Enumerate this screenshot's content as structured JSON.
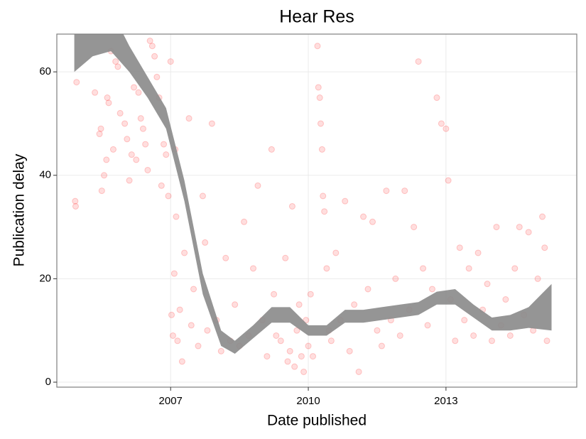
{
  "chart_data": {
    "type": "scatter",
    "title": "Hear Res",
    "x_label": "Date published",
    "y_label": "Publication delay",
    "x": [
      2004.92,
      2004.93,
      2004.95,
      2005.35,
      2005.45,
      2005.48,
      2005.5,
      2005.55,
      2005.6,
      2005.62,
      2005.65,
      2005.7,
      2005.75,
      2005.8,
      2005.85,
      2005.9,
      2006.0,
      2006.05,
      2006.1,
      2006.15,
      2006.2,
      2006.25,
      2006.3,
      2006.35,
      2006.4,
      2006.45,
      2006.5,
      2006.55,
      2006.6,
      2006.65,
      2006.7,
      2006.75,
      2006.8,
      2006.85,
      2006.9,
      2006.95,
      2007.0,
      2007.02,
      2007.05,
      2007.08,
      2007.1,
      2007.12,
      2007.15,
      2007.2,
      2007.25,
      2007.3,
      2007.4,
      2007.45,
      2007.5,
      2007.6,
      2007.7,
      2007.75,
      2007.8,
      2007.9,
      2008.0,
      2008.1,
      2008.2,
      2008.3,
      2008.4,
      2008.5,
      2008.6,
      2008.7,
      2008.8,
      2008.9,
      2009.0,
      2009.1,
      2009.2,
      2009.25,
      2009.3,
      2009.4,
      2009.5,
      2009.55,
      2009.6,
      2009.65,
      2009.7,
      2009.75,
      2009.8,
      2009.85,
      2009.9,
      2009.95,
      2010.0,
      2010.05,
      2010.1,
      2010.2,
      2010.22,
      2010.25,
      2010.27,
      2010.3,
      2010.32,
      2010.35,
      2010.4,
      2010.45,
      2010.5,
      2010.6,
      2010.7,
      2010.8,
      2010.9,
      2011.0,
      2011.1,
      2011.2,
      2011.3,
      2011.4,
      2011.5,
      2011.6,
      2011.7,
      2011.8,
      2011.9,
      2012.0,
      2012.1,
      2012.2,
      2012.3,
      2012.4,
      2012.5,
      2012.6,
      2012.7,
      2012.8,
      2012.9,
      2013.0,
      2013.05,
      2013.1,
      2013.2,
      2013.3,
      2013.4,
      2013.5,
      2013.6,
      2013.7,
      2013.8,
      2013.9,
      2014.0,
      2014.1,
      2014.2,
      2014.3,
      2014.4,
      2014.5,
      2014.6,
      2014.7,
      2014.8,
      2014.9,
      2015.0,
      2015.1,
      2015.15,
      2015.2
    ],
    "values": [
      35,
      34,
      58,
      56,
      48,
      49,
      37,
      40,
      43,
      55,
      54,
      64,
      45,
      62,
      61,
      52,
      50,
      47,
      39,
      44,
      57,
      43,
      56,
      51,
      49,
      46,
      41,
      66,
      65,
      63,
      59,
      55,
      38,
      46,
      44,
      36,
      62,
      13,
      9,
      21,
      45,
      32,
      8,
      14,
      4,
      25,
      51,
      11,
      18,
      7,
      36,
      27,
      10,
      50,
      12,
      6,
      24,
      8,
      15,
      7,
      31,
      9,
      22,
      38,
      12,
      5,
      45,
      17,
      9,
      8,
      24,
      4,
      6,
      34,
      3,
      10,
      15,
      5,
      2,
      12,
      7,
      17,
      5,
      65,
      57,
      55,
      50,
      45,
      36,
      33,
      22,
      10,
      8,
      25,
      12,
      35,
      6,
      15,
      2,
      32,
      18,
      31,
      10,
      7,
      37,
      12,
      20,
      9,
      37,
      14,
      30,
      62,
      22,
      11,
      18,
      55,
      50,
      49,
      39,
      16,
      8,
      26,
      12,
      22,
      9,
      25,
      14,
      19,
      8,
      30,
      11,
      16,
      9,
      22,
      30,
      13,
      29,
      10,
      20,
      32,
      26,
      8
    ],
    "color": "#ff0000",
    "band": {
      "x": [
        2004.9,
        2005.3,
        2005.7,
        2006.1,
        2006.5,
        2006.9,
        2007.3,
        2007.7,
        2008.1,
        2008.4,
        2008.8,
        2009.2,
        2009.6,
        2010.0,
        2010.4,
        2010.8,
        2011.2,
        2011.6,
        2012.0,
        2012.4,
        2012.8,
        2013.2,
        2013.6,
        2014.0,
        2014.4,
        2014.8,
        2015.3
      ],
      "lower": [
        60,
        63,
        64,
        60,
        55,
        49,
        35,
        17,
        7,
        5.5,
        8.5,
        11.5,
        11.5,
        9,
        9,
        11.5,
        11.5,
        12,
        12.5,
        13,
        15,
        15,
        12.5,
        10,
        10,
        10.5,
        10
      ],
      "upper": [
        68,
        74,
        72,
        65,
        59,
        53,
        39,
        21,
        10,
        8,
        11,
        14.5,
        14.5,
        11,
        11,
        14,
        14,
        14.5,
        15,
        15.5,
        17.5,
        18,
        15,
        12.5,
        13,
        14.5,
        19
      ],
      "color": "#8c8c8c"
    },
    "xlim": [
      2004.52,
      2015.85
    ],
    "ylim": [
      -0.96,
      67.3
    ],
    "xticks": [
      2007,
      2010,
      2013
    ],
    "yticks": [
      0,
      20,
      40,
      60
    ],
    "grid": true
  }
}
